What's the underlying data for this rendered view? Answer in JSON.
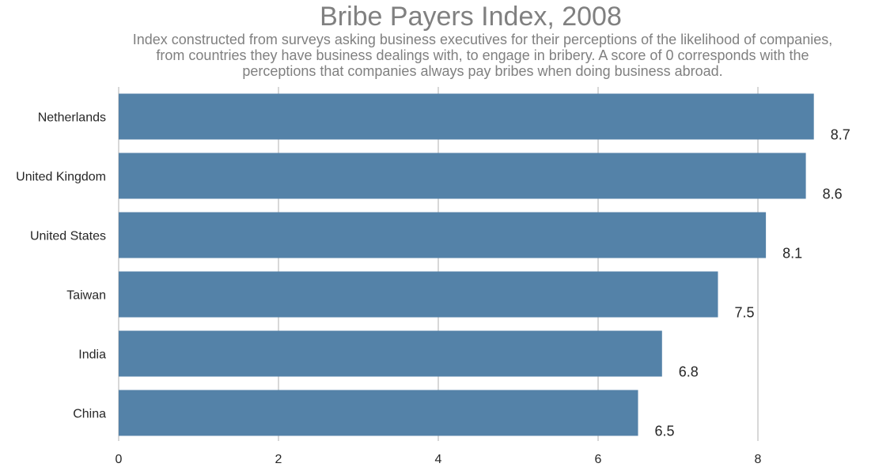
{
  "chart_data": {
    "type": "bar",
    "orientation": "horizontal",
    "title": "Bribe Payers Index, 2008",
    "subtitle_lines": [
      "Index constructed from surveys asking business executives for their perceptions of the likelihood of companies,",
      "from countries they have business dealings with, to engage in bribery. A score of 0 corresponds with the",
      "perceptions that companies always pay bribes when doing business abroad."
    ],
    "categories": [
      "Netherlands",
      "United Kingdom",
      "United States",
      "Taiwan",
      "India",
      "China"
    ],
    "values": [
      8.7,
      8.6,
      8.1,
      7.5,
      6.8,
      6.5
    ],
    "value_labels": [
      "8.7",
      "8.6",
      "8.1",
      "7.5",
      "6.8",
      "6.5"
    ],
    "xlim": [
      0,
      8.75
    ],
    "xticks": [
      0,
      2,
      4,
      6,
      8
    ],
    "xtick_labels": [
      "0",
      "2",
      "4",
      "6",
      "8"
    ],
    "xlabel": "",
    "ylabel": "",
    "grid": "vertical",
    "bar_color": "#5482a8",
    "grid_color": "#cccccc"
  }
}
